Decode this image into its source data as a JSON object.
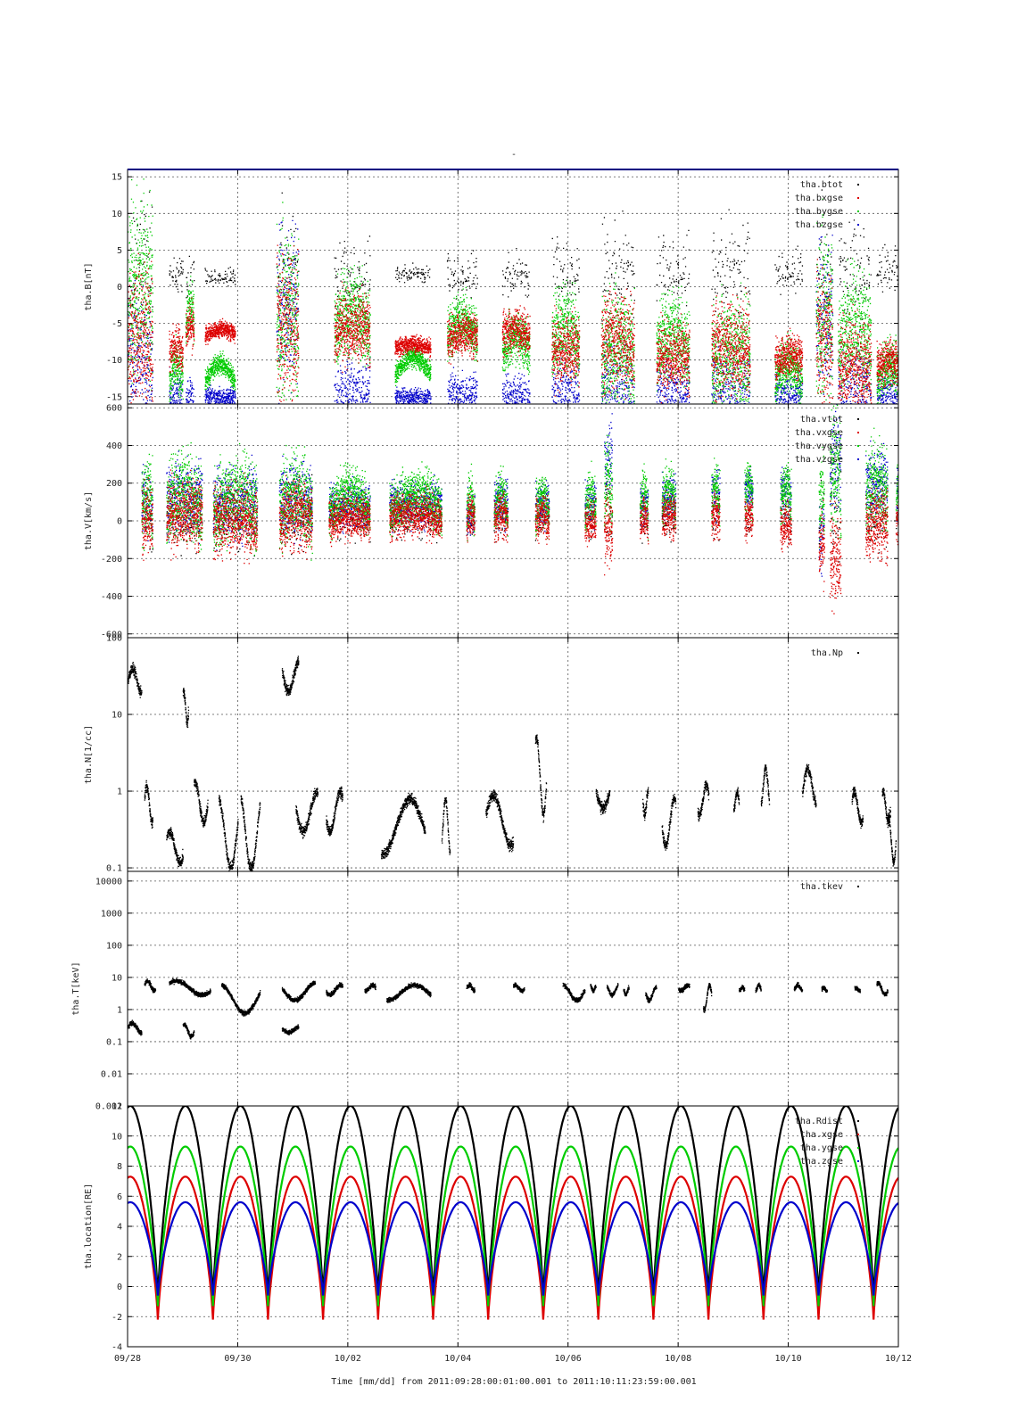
{
  "figure": {
    "title": "-",
    "footer": "Time [mm/dd]  from 2011:09:28:00:01:00.001  to  2011:10:11:23:59:00.001"
  },
  "chart_data": [
    {
      "type": "scatter",
      "ylabel": "tha.B[nT]",
      "ylim": [
        -16,
        16
      ],
      "scale": "linear",
      "yticks": [
        {
          "v": -15,
          "t": "-15"
        },
        {
          "v": -10,
          "t": "-10"
        },
        {
          "v": -5,
          "t": "-5"
        },
        {
          "v": 0,
          "t": "0"
        },
        {
          "v": 5,
          "t": "5"
        },
        {
          "v": 10,
          "t": "10"
        },
        {
          "v": 15,
          "t": "15"
        }
      ],
      "legend_position": "top-right",
      "series": [
        {
          "name": "tha.btot",
          "color": "#000000"
        },
        {
          "name": "tha.bxgse",
          "color": "#dd0000"
        },
        {
          "name": "tha.bygse",
          "color": "#00cc00"
        },
        {
          "name": "tha.bzgse",
          "color": "#0000cc"
        }
      ],
      "segments": [
        {
          "s": 0.0,
          "e": 0.45,
          "r": -8,
          "g": -2,
          "b": -11,
          "act": 5
        },
        {
          "s": 0.75,
          "e": 1.0,
          "r": -9,
          "g": -13,
          "b": -15,
          "act": 1
        },
        {
          "s": 1.05,
          "e": 1.2,
          "r": -6,
          "g": -5,
          "b": -15,
          "act": 1
        },
        {
          "s": 1.4,
          "e": 1.95,
          "r": -6.5,
          "g": -13,
          "b": -15,
          "act": 0
        },
        {
          "s": 2.7,
          "e": 3.1,
          "r": -6,
          "g": -5,
          "b": -2,
          "act": 5
        },
        {
          "s": 3.75,
          "e": 4.4,
          "r": -6,
          "g": -6,
          "b": -15,
          "act": 2
        },
        {
          "s": 4.85,
          "e": 5.5,
          "r": -8.5,
          "g": -12,
          "b": -15,
          "act": 0
        },
        {
          "s": 5.8,
          "e": 6.35,
          "r": -7,
          "g": -7,
          "b": -15,
          "act": 1
        },
        {
          "s": 6.8,
          "e": 7.3,
          "r": -6.5,
          "g": -9,
          "b": -15,
          "act": 1
        },
        {
          "s": 7.7,
          "e": 8.2,
          "r": -9,
          "g": -8,
          "b": -15,
          "act": 2
        },
        {
          "s": 8.6,
          "e": 9.2,
          "r": -8,
          "g": -10,
          "b": -15,
          "act": 3
        },
        {
          "s": 9.6,
          "e": 10.2,
          "r": -10,
          "g": -9,
          "b": -15,
          "act": 2
        },
        {
          "s": 10.6,
          "e": 11.3,
          "r": -9,
          "g": -11,
          "b": -15,
          "act": 3
        },
        {
          "s": 11.75,
          "e": 12.25,
          "r": -10,
          "g": -13,
          "b": -15,
          "act": 1
        },
        {
          "s": 12.5,
          "e": 12.8,
          "r": -8,
          "g": -5,
          "b": -4,
          "act": 5
        },
        {
          "s": 12.9,
          "e": 13.5,
          "r": -11,
          "g": -8,
          "b": -15,
          "act": 3
        },
        {
          "s": 13.6,
          "e": 14.1,
          "r": -11,
          "g": -13,
          "b": -15,
          "act": 1
        }
      ]
    },
    {
      "type": "scatter",
      "ylabel": "tha.V[km/s]",
      "ylim": [
        -620,
        620
      ],
      "scale": "linear",
      "yticks": [
        {
          "v": -600,
          "t": "-600"
        },
        {
          "v": -400,
          "t": "-400"
        },
        {
          "v": -200,
          "t": "-200"
        },
        {
          "v": 0,
          "t": "0"
        },
        {
          "v": 200,
          "t": "200"
        },
        {
          "v": 400,
          "t": "400"
        },
        {
          "v": 600,
          "t": "600"
        }
      ],
      "legend_position": "top-right",
      "series": [
        {
          "name": "tha.vtot",
          "color": "#000000"
        },
        {
          "name": "tha.vxgse",
          "color": "#dd0000"
        },
        {
          "name": "tha.vygse",
          "color": "#00cc00"
        },
        {
          "name": "tha.vzgse",
          "color": "#0000cc"
        }
      ],
      "segments": [
        {
          "s": 0.25,
          "e": 0.45,
          "r": 0,
          "g": 60,
          "b": 100,
          "act": 2
        },
        {
          "s": 0.7,
          "e": 1.35,
          "r": 20,
          "g": 50,
          "b": 120,
          "act": 2
        },
        {
          "s": 1.55,
          "e": 2.35,
          "r": -10,
          "g": 40,
          "b": 100,
          "act": 2
        },
        {
          "s": 2.75,
          "e": 3.35,
          "r": 0,
          "g": 60,
          "b": 120,
          "act": 2
        },
        {
          "s": 3.65,
          "e": 4.4,
          "r": 0,
          "g": 50,
          "b": 80,
          "act": 1
        },
        {
          "s": 4.75,
          "e": 5.7,
          "r": 10,
          "g": 50,
          "b": 90,
          "act": 1
        },
        {
          "s": 6.15,
          "e": 6.3,
          "r": 0,
          "g": 30,
          "b": 40,
          "act": 1
        },
        {
          "s": 6.65,
          "e": 6.9,
          "r": 0,
          "g": 50,
          "b": 100,
          "act": 1
        },
        {
          "s": 7.4,
          "e": 7.65,
          "r": 0,
          "g": 40,
          "b": 90,
          "act": 1
        },
        {
          "s": 8.3,
          "e": 8.5,
          "r": -30,
          "g": 50,
          "b": 100,
          "act": 1
        },
        {
          "s": 8.65,
          "e": 8.8,
          "r": -50,
          "g": 120,
          "b": 320,
          "act": 2
        },
        {
          "s": 9.3,
          "e": 9.45,
          "r": 0,
          "g": 50,
          "b": 80,
          "act": 1
        },
        {
          "s": 9.7,
          "e": 9.95,
          "r": 0,
          "g": 80,
          "b": 120,
          "act": 1
        },
        {
          "s": 10.6,
          "e": 10.75,
          "r": 0,
          "g": 100,
          "b": 150,
          "act": 1
        },
        {
          "s": 11.2,
          "e": 11.35,
          "r": 0,
          "g": 120,
          "b": 180,
          "act": 1
        },
        {
          "s": 11.85,
          "e": 12.05,
          "r": -40,
          "g": 100,
          "b": 160,
          "act": 1
        },
        {
          "s": 12.55,
          "e": 12.65,
          "r": -150,
          "g": 50,
          "b": -60,
          "act": 2
        },
        {
          "s": 12.75,
          "e": 12.95,
          "r": -200,
          "g": 200,
          "b": 300,
          "act": 3
        },
        {
          "s": 13.4,
          "e": 13.8,
          "r": -40,
          "g": 120,
          "b": 200,
          "act": 2
        },
        {
          "s": 13.95,
          "e": 14.0,
          "r": -40,
          "g": 100,
          "b": 160,
          "act": 1
        }
      ]
    },
    {
      "type": "scatter",
      "ylabel": "tha.N[1/cc]",
      "ylim": [
        0.09,
        100
      ],
      "scale": "log",
      "yticks": [
        {
          "v": 0.1,
          "t": "0.1"
        },
        {
          "v": 1,
          "t": "1"
        },
        {
          "v": 10,
          "t": "10"
        },
        {
          "v": 100,
          "t": "100"
        }
      ],
      "legend_position": "top-right",
      "series": [
        {
          "name": "tha.Np",
          "color": "#000000"
        }
      ],
      "segments": [
        {
          "s": 0.0,
          "e": 0.25,
          "lo": 20,
          "hi": 40
        },
        {
          "s": 0.3,
          "e": 0.45,
          "lo": 0.4,
          "hi": 1.2
        },
        {
          "s": 0.7,
          "e": 1.0,
          "lo": 0.12,
          "hi": 0.3
        },
        {
          "s": 1.0,
          "e": 1.1,
          "lo": 8,
          "hi": 20
        },
        {
          "s": 1.2,
          "e": 1.45,
          "lo": 0.4,
          "hi": 1.3
        },
        {
          "s": 1.65,
          "e": 2.0,
          "lo": 0.1,
          "hi": 0.8
        },
        {
          "s": 2.05,
          "e": 2.4,
          "lo": 0.1,
          "hi": 1.0
        },
        {
          "s": 2.8,
          "e": 3.1,
          "lo": 20,
          "hi": 50
        },
        {
          "s": 3.05,
          "e": 3.45,
          "lo": 0.3,
          "hi": 1.0
        },
        {
          "s": 3.6,
          "e": 3.9,
          "lo": 0.3,
          "hi": 1.0
        },
        {
          "s": 4.6,
          "e": 5.4,
          "lo": 0.15,
          "hi": 0.8
        },
        {
          "s": 5.7,
          "e": 5.85,
          "lo": 0.15,
          "hi": 0.8
        },
        {
          "s": 6.5,
          "e": 7.0,
          "lo": 0.2,
          "hi": 0.9
        },
        {
          "s": 7.4,
          "e": 7.6,
          "lo": 0.5,
          "hi": 5
        },
        {
          "s": 8.5,
          "e": 8.75,
          "lo": 0.6,
          "hi": 1.0
        },
        {
          "s": 9.35,
          "e": 9.45,
          "lo": 0.5,
          "hi": 1.0
        },
        {
          "s": 9.7,
          "e": 9.95,
          "lo": 0.2,
          "hi": 0.8
        },
        {
          "s": 10.35,
          "e": 10.55,
          "lo": 0.5,
          "hi": 1.2
        },
        {
          "s": 11.0,
          "e": 11.1,
          "lo": 0.6,
          "hi": 1.0
        },
        {
          "s": 11.5,
          "e": 11.65,
          "lo": 0.6,
          "hi": 2
        },
        {
          "s": 12.25,
          "e": 12.5,
          "lo": 0.7,
          "hi": 2
        },
        {
          "s": 13.15,
          "e": 13.35,
          "lo": 0.4,
          "hi": 1.0
        },
        {
          "s": 13.7,
          "e": 13.85,
          "lo": 0.4,
          "hi": 1.0
        },
        {
          "s": 13.8,
          "e": 13.95,
          "lo": 0.12,
          "hi": 0.5
        }
      ]
    },
    {
      "type": "scatter",
      "ylabel": "tha.T[keV]",
      "ylim": [
        0.001,
        20000
      ],
      "scale": "log",
      "yticks": [
        {
          "v": 0.001,
          "t": "0.001"
        },
        {
          "v": 0.01,
          "t": "0.01"
        },
        {
          "v": 0.1,
          "t": "0.1"
        },
        {
          "v": 1,
          "t": "1"
        },
        {
          "v": 10,
          "t": "10"
        },
        {
          "v": 100,
          "t": "100"
        },
        {
          "v": 1000,
          "t": "1000"
        },
        {
          "v": 10000,
          "t": "10000"
        }
      ],
      "legend_position": "top-right",
      "series": [
        {
          "name": "tha.tkev",
          "color": "#000000"
        }
      ],
      "segments": [
        {
          "s": 0.0,
          "e": 0.25,
          "lo": 0.2,
          "hi": 0.4
        },
        {
          "s": 0.3,
          "e": 0.5,
          "lo": 4,
          "hi": 8
        },
        {
          "s": 0.75,
          "e": 1.5,
          "lo": 3,
          "hi": 8
        },
        {
          "s": 1.0,
          "e": 1.2,
          "lo": 0.15,
          "hi": 0.35
        },
        {
          "s": 1.7,
          "e": 2.4,
          "lo": 0.8,
          "hi": 6
        },
        {
          "s": 2.8,
          "e": 3.1,
          "lo": 0.2,
          "hi": 0.3
        },
        {
          "s": 2.8,
          "e": 3.4,
          "lo": 2,
          "hi": 7
        },
        {
          "s": 3.6,
          "e": 3.9,
          "lo": 3,
          "hi": 6
        },
        {
          "s": 4.3,
          "e": 4.5,
          "lo": 4,
          "hi": 6
        },
        {
          "s": 4.7,
          "e": 5.5,
          "lo": 2,
          "hi": 6
        },
        {
          "s": 6.15,
          "e": 6.3,
          "lo": 4,
          "hi": 6
        },
        {
          "s": 7.0,
          "e": 7.2,
          "lo": 4,
          "hi": 6
        },
        {
          "s": 7.9,
          "e": 8.3,
          "lo": 2,
          "hi": 6
        },
        {
          "s": 8.4,
          "e": 8.5,
          "lo": 4,
          "hi": 6
        },
        {
          "s": 8.7,
          "e": 8.9,
          "lo": 3,
          "hi": 6
        },
        {
          "s": 9.0,
          "e": 9.1,
          "lo": 3,
          "hi": 5
        },
        {
          "s": 9.4,
          "e": 9.6,
          "lo": 2,
          "hi": 5
        },
        {
          "s": 10.0,
          "e": 10.2,
          "lo": 4,
          "hi": 6
        },
        {
          "s": 10.45,
          "e": 10.6,
          "lo": 1,
          "hi": 6
        },
        {
          "s": 11.1,
          "e": 11.2,
          "lo": 4,
          "hi": 5
        },
        {
          "s": 11.4,
          "e": 11.5,
          "lo": 4,
          "hi": 6
        },
        {
          "s": 12.1,
          "e": 12.25,
          "lo": 4,
          "hi": 6
        },
        {
          "s": 12.6,
          "e": 12.7,
          "lo": 4,
          "hi": 5
        },
        {
          "s": 13.2,
          "e": 13.3,
          "lo": 4,
          "hi": 5
        },
        {
          "s": 13.6,
          "e": 13.8,
          "lo": 3,
          "hi": 7
        }
      ]
    },
    {
      "type": "line",
      "ylabel": "tha.location[RE]",
      "ylim": [
        -4,
        12
      ],
      "scale": "linear",
      "yticks": [
        {
          "v": -4,
          "t": "-4"
        },
        {
          "v": -2,
          "t": "-2"
        },
        {
          "v": 0,
          "t": "0"
        },
        {
          "v": 2,
          "t": "2"
        },
        {
          "v": 4,
          "t": "4"
        },
        {
          "v": 6,
          "t": "6"
        },
        {
          "v": 8,
          "t": "8"
        },
        {
          "v": 10,
          "t": "10"
        },
        {
          "v": 12,
          "t": "12"
        }
      ],
      "legend_position": "top-right",
      "orbit_period_days": 1.0,
      "first_perigee_day": 0.55,
      "series": [
        {
          "name": "tha.Rdist",
          "color": "#000000",
          "apogee": 12.0,
          "perigee": -0.9
        },
        {
          "name": "tha.xgse",
          "color": "#dd0000",
          "apogee": 7.3,
          "perigee": -2.2
        },
        {
          "name": "tha.ygse",
          "color": "#00cc00",
          "apogee": 9.3,
          "perigee": -1.3
        },
        {
          "name": "tha.zgse",
          "color": "#0000cc",
          "apogee": 5.6,
          "perigee": -0.6
        }
      ]
    }
  ],
  "x_axis": {
    "range_days": [
      0,
      14
    ],
    "ticks": [
      {
        "d": 0,
        "t": "09/28"
      },
      {
        "d": 2,
        "t": "09/30"
      },
      {
        "d": 4,
        "t": "10/02"
      },
      {
        "d": 6,
        "t": "10/04"
      },
      {
        "d": 8,
        "t": "10/06"
      },
      {
        "d": 10,
        "t": "10/08"
      },
      {
        "d": 12,
        "t": "10/10"
      },
      {
        "d": 14,
        "t": "10/12"
      }
    ]
  }
}
